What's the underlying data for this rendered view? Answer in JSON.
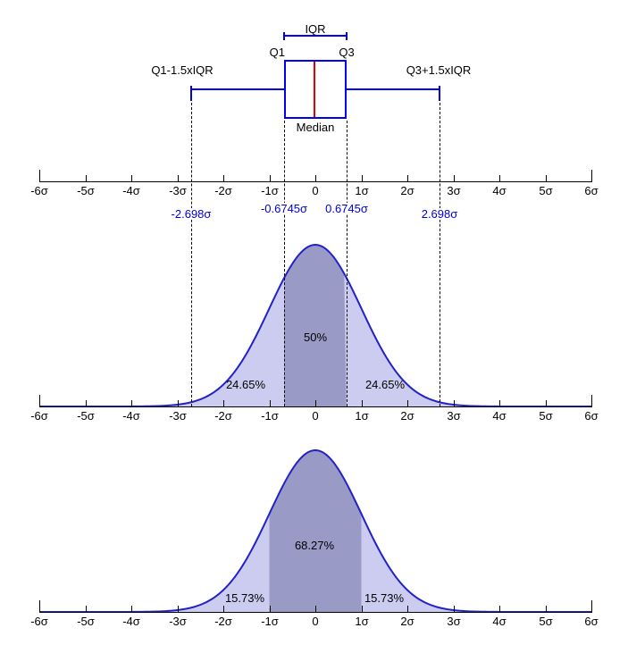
{
  "axis": {
    "tick_labels": [
      "-6σ",
      "-5σ",
      "-4σ",
      "-3σ",
      "-2σ",
      "-1σ",
      "0",
      "1σ",
      "2σ",
      "3σ",
      "4σ",
      "5σ",
      "6σ"
    ],
    "tick_values": [
      -6,
      -5,
      -4,
      -3,
      -2,
      -1,
      0,
      1,
      2,
      3,
      4,
      5,
      6
    ],
    "unit": "σ"
  },
  "sigma_markers": {
    "values": [
      -2.698,
      -0.6745,
      0.6745,
      2.698
    ],
    "labels": [
      "-2.698σ",
      "-0.6745σ",
      "0.6745σ",
      "2.698σ"
    ]
  },
  "colors": {
    "background": "#ffffff",
    "box_outline": "#0000ee",
    "median_line": "#e60000",
    "curve_stroke": "#2222c8",
    "fill_light": "#ccccf0",
    "fill_dark": "#9a9ac6",
    "sigma_label_text": "#0000dd",
    "axis": "#000000"
  },
  "chart_data": [
    {
      "type": "boxplot",
      "orientation": "horizontal",
      "units": "sigma",
      "xlim": [
        -6,
        6
      ],
      "median": 0,
      "q1": -0.6745,
      "q3": 0.6745,
      "whisker_low": -2.698,
      "whisker_high": 2.698,
      "labels": {
        "iqr": "IQR",
        "q1": "Q1",
        "q3": "Q3",
        "median": "Median",
        "lower_fence": "Q1-1.5xIQR",
        "upper_fence": "Q3+1.5xIQR"
      }
    },
    {
      "type": "area",
      "curve": "standard-normal-pdf",
      "xlim": [
        -6,
        6
      ],
      "peak_density": 0.3989,
      "regions": [
        {
          "from": -0.6745,
          "to": 0.6745,
          "area_pct": 50,
          "label": "50%"
        },
        {
          "from": -2.698,
          "to": -0.6745,
          "area_pct": 24.65,
          "label": "24.65%"
        },
        {
          "from": 0.6745,
          "to": 2.698,
          "area_pct": 24.65,
          "label": "24.65%"
        }
      ]
    },
    {
      "type": "area",
      "curve": "standard-normal-pdf",
      "xlim": [
        -6,
        6
      ],
      "peak_density": 0.3989,
      "regions": [
        {
          "from": -1,
          "to": 1,
          "area_pct": 68.27,
          "label": "68.27%"
        },
        {
          "from": -3.3,
          "to": -1,
          "area_pct": 15.73,
          "label": "15.73%"
        },
        {
          "from": 1,
          "to": 3.3,
          "area_pct": 15.73,
          "label": "15.73%"
        }
      ]
    }
  ]
}
